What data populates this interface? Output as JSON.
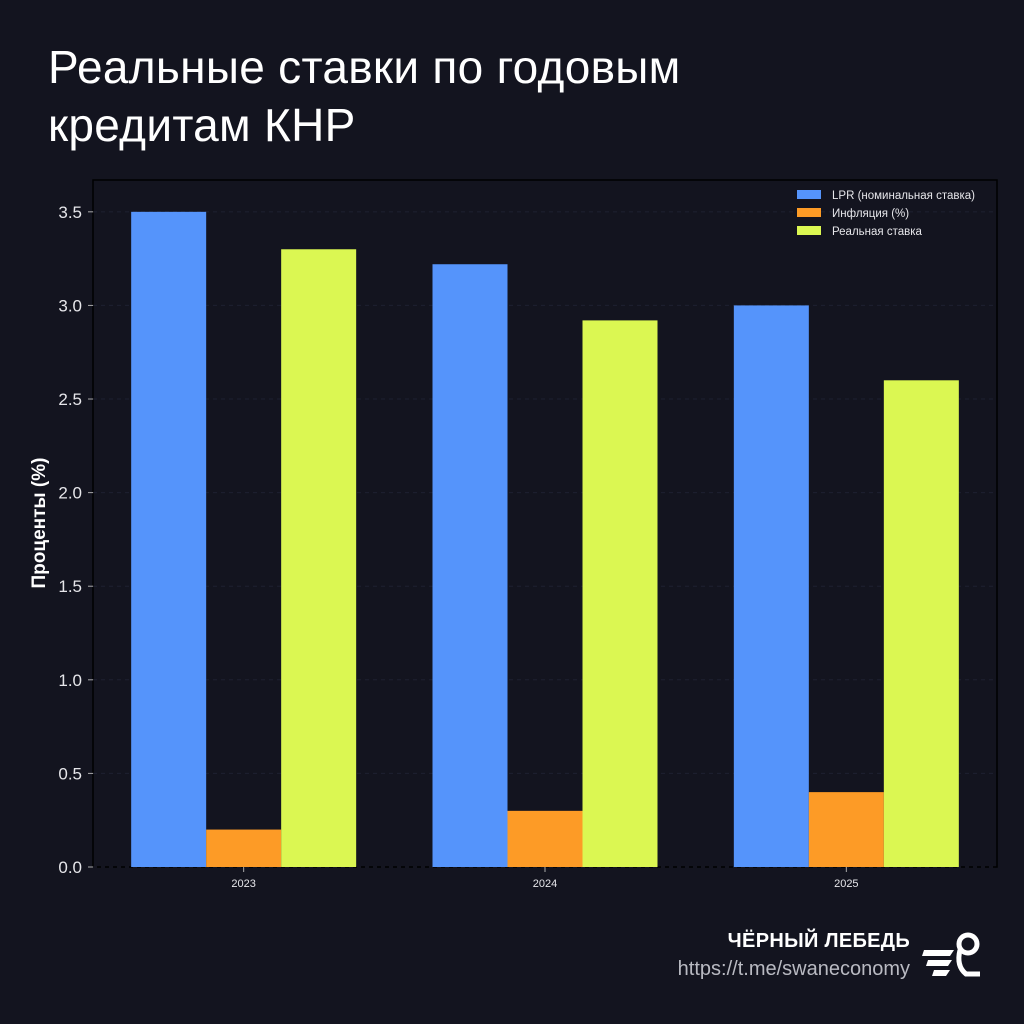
{
  "title": "Реальные ставки по годовым\nкредитам КНР",
  "chart_data": {
    "type": "bar",
    "title": "",
    "xlabel": "",
    "ylabel": "Проценты (%)",
    "ylim": [
      0,
      3.67
    ],
    "yticks": [
      "0.0",
      "0.5",
      "1.0",
      "1.5",
      "2.0",
      "2.5",
      "3.0",
      "3.5"
    ],
    "categories": [
      "2023",
      "2024",
      "2025"
    ],
    "series": [
      {
        "name": "LPR (номинальная ставка)",
        "color": "#5594fb",
        "values": [
          3.5,
          3.22,
          3.0
        ]
      },
      {
        "name": "Инфляция (%)",
        "color": "#fd9b26",
        "values": [
          0.2,
          0.3,
          0.4
        ]
      },
      {
        "name": "Реальная ставка",
        "color": "#dbf752",
        "values": [
          3.3,
          2.92,
          2.6
        ]
      }
    ],
    "grid": true,
    "legend": "top-right"
  },
  "brand": {
    "name": "ЧЁРНЫЙ ЛЕБЕДЬ",
    "url": "https://t.me/swaneconomy"
  }
}
